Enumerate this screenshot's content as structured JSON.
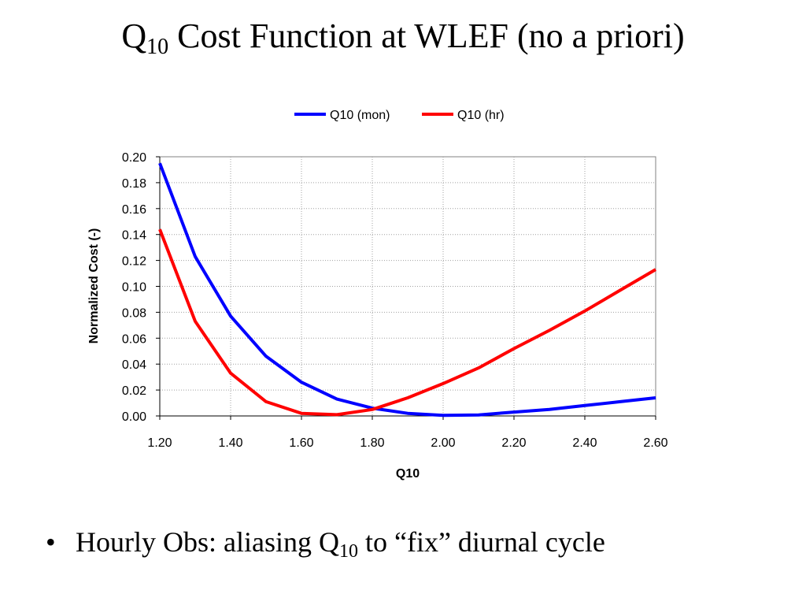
{
  "slide": {
    "title_prefix": "Q",
    "title_sub": "10",
    "title_suffix": " Cost Function at WLEF (no a priori)",
    "bullet_marker": "•",
    "bullet_prefix": "Hourly Obs: aliasing Q",
    "bullet_sub": "10",
    "bullet_suffix": " to “fix” diurnal cycle"
  },
  "chart_data": {
    "type": "line",
    "title": "",
    "xlabel": "Q10",
    "ylabel": "Normalized Cost (-)",
    "xlim": [
      1.2,
      2.6
    ],
    "ylim": [
      0,
      0.2
    ],
    "x_ticks": [
      "1.20",
      "1.40",
      "1.60",
      "1.80",
      "2.00",
      "2.20",
      "2.40",
      "2.60"
    ],
    "y_ticks": [
      "0.00",
      "0.02",
      "0.04",
      "0.06",
      "0.08",
      "0.10",
      "0.12",
      "0.14",
      "0.16",
      "0.18",
      "0.20"
    ],
    "grid": true,
    "legend_position": "top-center",
    "x": [
      1.2,
      1.3,
      1.4,
      1.5,
      1.6,
      1.7,
      1.8,
      1.9,
      2.0,
      2.1,
      2.2,
      2.3,
      2.4,
      2.5,
      2.6
    ],
    "series": [
      {
        "name": "Q10 (mon)",
        "color": "#0000FF",
        "values": [
          0.195,
          0.123,
          0.077,
          0.046,
          0.026,
          0.013,
          0.006,
          0.002,
          0.0005,
          0.0008,
          0.003,
          0.005,
          0.008,
          0.011,
          0.014
        ]
      },
      {
        "name": "Q10 (hr)",
        "color": "#FF0000",
        "values": [
          0.144,
          0.073,
          0.033,
          0.011,
          0.002,
          0.001,
          0.005,
          0.014,
          0.025,
          0.037,
          0.052,
          0.066,
          0.081,
          0.097,
          0.113
        ]
      }
    ]
  }
}
